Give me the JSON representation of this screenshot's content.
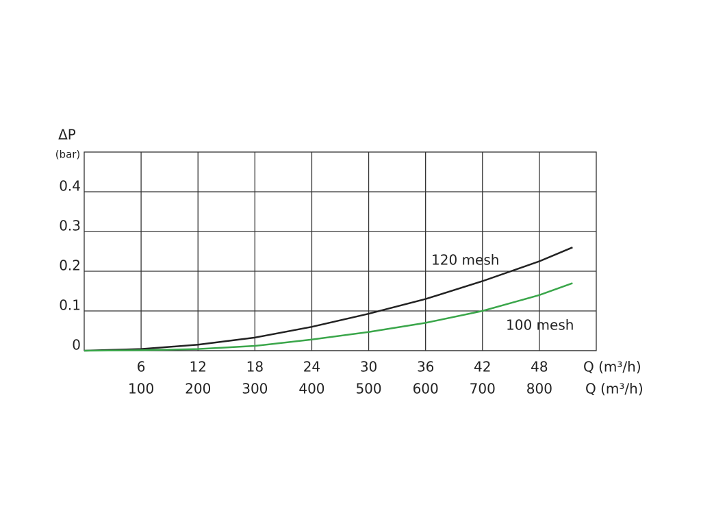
{
  "chart_data": {
    "type": "line",
    "y_label": "ΔP",
    "y_unit": "(bar)",
    "x_label": "Q (m³/h)",
    "x2_label": "Q (m³/h)",
    "x": [
      0,
      6,
      12,
      18,
      24,
      30,
      36,
      42,
      48,
      51.5
    ],
    "series": [
      {
        "name": "120 mesh",
        "color": "#222222",
        "values": [
          0,
          0.004,
          0.015,
          0.033,
          0.06,
          0.093,
          0.13,
          0.175,
          0.225,
          0.26
        ]
      },
      {
        "name": "100 mesh",
        "color": "#3aa64a",
        "values": [
          0,
          0.001,
          0.004,
          0.012,
          0.028,
          0.047,
          0.07,
          0.1,
          0.14,
          0.17
        ]
      }
    ],
    "xlim": [
      0,
      54
    ],
    "xticks": [
      6,
      12,
      18,
      24,
      30,
      36,
      42,
      48
    ],
    "x2lim": [
      0,
      900
    ],
    "x2ticks": [
      100,
      200,
      300,
      400,
      500,
      600,
      700,
      800
    ],
    "ylim": [
      0,
      0.5
    ],
    "yticks": [
      0,
      0.1,
      0.2,
      0.3,
      0.4
    ],
    "grid": true
  }
}
